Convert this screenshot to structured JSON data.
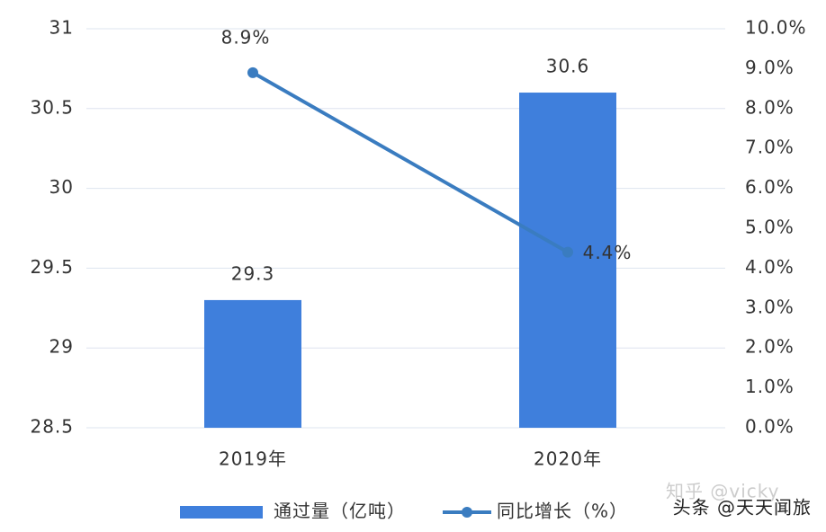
{
  "chart_data": {
    "type": "bar",
    "categories": [
      "2019年",
      "2020年"
    ],
    "series": [
      {
        "name": "通过量（亿吨）",
        "type": "bar",
        "color": "#3f7fdc",
        "values": [
          29.3,
          30.6
        ]
      },
      {
        "name": "同比增长（%）",
        "type": "line",
        "axis": "y2",
        "color": "#3a7cc0",
        "values": [
          8.9,
          4.4
        ],
        "value_labels": [
          "8.9%",
          "4.4%"
        ]
      }
    ],
    "ylim": [
      28.5,
      31
    ],
    "yticks": [
      28.5,
      29,
      29.5,
      30,
      30.5,
      31
    ],
    "y2lim": [
      0,
      10
    ],
    "y2ticks": [
      {
        "value": 0,
        "label": "0.0%"
      },
      {
        "value": 1,
        "label": "1.0%"
      },
      {
        "value": 2,
        "label": "2.0%"
      },
      {
        "value": 3,
        "label": "3.0%"
      },
      {
        "value": 4,
        "label": "4.0%"
      },
      {
        "value": 5,
        "label": "5.0%"
      },
      {
        "value": 6,
        "label": "6.0%"
      },
      {
        "value": 7,
        "label": "7.0%"
      },
      {
        "value": 8,
        "label": "8.0%"
      },
      {
        "value": 9,
        "label": "9.0%"
      },
      {
        "value": 10,
        "label": "10.0%"
      }
    ],
    "grid": true,
    "legend": "bottom",
    "watermarks": [
      "知乎 @vicky",
      "头条 @天天闻旅"
    ]
  }
}
